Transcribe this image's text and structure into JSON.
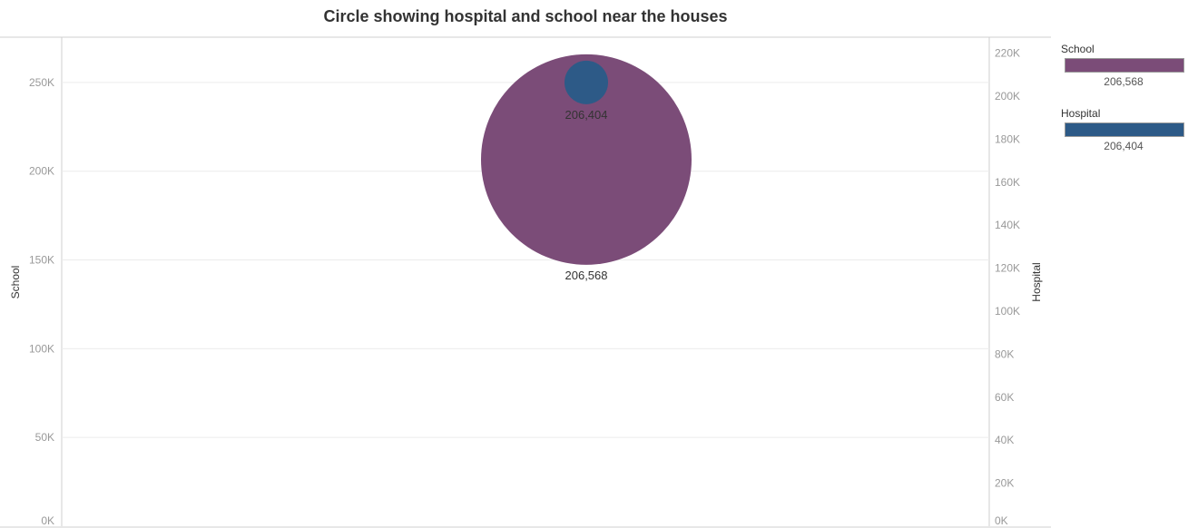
{
  "colors": {
    "school": "#7b4c78",
    "hospital": "#2d5a87"
  },
  "chart_data": {
    "type": "scatter",
    "title": "Circle showing hospital and school near the houses",
    "left_axis": {
      "label": "School",
      "range": [
        0,
        275000
      ],
      "ticks": [
        "0K",
        "50K",
        "100K",
        "150K",
        "200K",
        "250K"
      ],
      "tick_values": [
        0,
        50000,
        100000,
        150000,
        200000,
        250000
      ]
    },
    "right_axis": {
      "label": "Hospital",
      "range": [
        0,
        227000
      ],
      "ticks": [
        "0K",
        "20K",
        "40K",
        "60K",
        "80K",
        "100K",
        "120K",
        "140K",
        "160K",
        "180K",
        "200K",
        "220K"
      ],
      "tick_values": [
        0,
        20000,
        40000,
        60000,
        80000,
        100000,
        120000,
        140000,
        160000,
        180000,
        200000,
        220000
      ]
    },
    "grid": true,
    "legend_position": "right",
    "series": [
      {
        "name": "School",
        "value": 206568,
        "label": "206,568",
        "axis": "left",
        "color": "#7b4c78"
      },
      {
        "name": "Hospital",
        "value": 206404,
        "label": "206,404",
        "axis": "right",
        "color": "#2d5a87"
      }
    ]
  },
  "legend": {
    "school_title": "School",
    "school_value": "206,568",
    "hospital_title": "Hospital",
    "hospital_value": "206,404"
  }
}
